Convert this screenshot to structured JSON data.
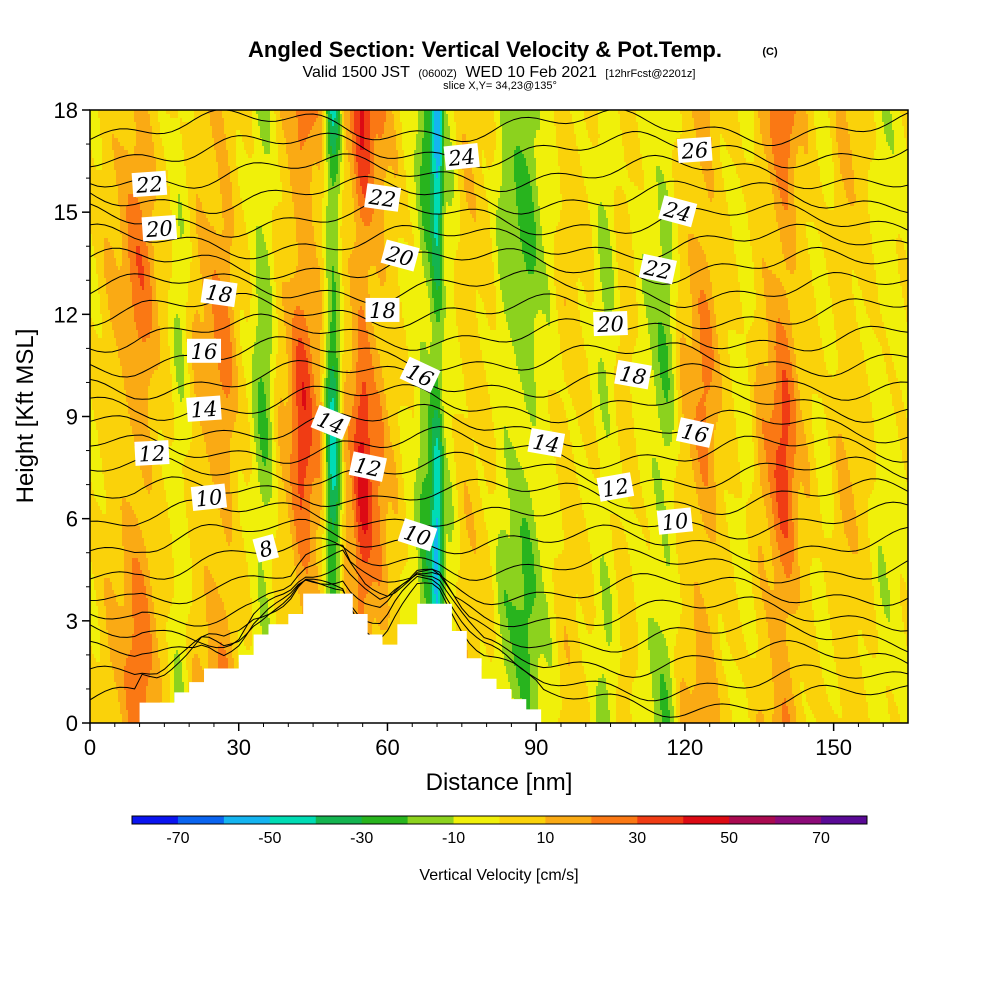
{
  "header": {
    "title": "Angled Section: Vertical Velocity & Pot.Temp.",
    "copyright": "(C)",
    "valid_prefix": "Valid 1500 JST",
    "valid_utc": "(0600Z)",
    "valid_date": "WED 10 Feb 2021",
    "forecast": "[12hrFcst@2201z]",
    "slice": "slice X,Y= 34,23@135°"
  },
  "chart_data": {
    "type": "heatmap",
    "xlabel": "Distance [nm]",
    "ylabel": "Height [Kft MSL]",
    "xlim": [
      0,
      165
    ],
    "ylim": [
      0,
      18
    ],
    "x_ticks": [
      0,
      30,
      60,
      90,
      120,
      150
    ],
    "y_ticks": [
      0,
      3,
      6,
      9,
      12,
      15,
      18
    ],
    "shading_field": "Vertical Velocity [cm/s]",
    "contour_field": "Potential Temperature [C]",
    "colorbar": {
      "label": "Vertical Velocity [cm/s]",
      "tick_labels": [
        "-70",
        "-50",
        "-30",
        "-10",
        "10",
        "30",
        "50",
        "70"
      ],
      "tick_values": [
        -70,
        -50,
        -30,
        -10,
        10,
        30,
        50,
        70
      ],
      "bounds": [
        -80,
        80
      ],
      "colors": [
        "#0a14f0",
        "#0a64f0",
        "#14b4f0",
        "#00dcb4",
        "#14b450",
        "#28b41e",
        "#8cd21e",
        "#f0f00a",
        "#fad20a",
        "#faaa14",
        "#fa7814",
        "#f03c14",
        "#dc0a14",
        "#aa0a50",
        "#8c0a78",
        "#5a0a96"
      ]
    },
    "columns": [
      {
        "x": 0,
        "w": 0
      },
      {
        "x": 5,
        "w": 10
      },
      {
        "x": 10,
        "w": 25
      },
      {
        "x": 15,
        "w": 5
      },
      {
        "x": 18,
        "w": -10
      },
      {
        "x": 22,
        "w": 12
      },
      {
        "x": 27,
        "w": 22
      },
      {
        "x": 31,
        "w": 2
      },
      {
        "x": 35,
        "w": -20
      },
      {
        "x": 39,
        "w": 10
      },
      {
        "x": 43,
        "w": 35
      },
      {
        "x": 46,
        "w": 18
      },
      {
        "x": 49,
        "w": -40
      },
      {
        "x": 52,
        "w": 15
      },
      {
        "x": 55,
        "w": 40
      },
      {
        "x": 58,
        "w": 22
      },
      {
        "x": 61,
        "w": 8
      },
      {
        "x": 65,
        "w": -5
      },
      {
        "x": 68,
        "w": -25
      },
      {
        "x": 70,
        "w": -50
      },
      {
        "x": 72,
        "w": -10
      },
      {
        "x": 76,
        "w": 8
      },
      {
        "x": 80,
        "w": 3
      },
      {
        "x": 84,
        "w": -15
      },
      {
        "x": 88,
        "w": -22
      },
      {
        "x": 92,
        "w": -8
      },
      {
        "x": 96,
        "w": 6
      },
      {
        "x": 100,
        "w": 2
      },
      {
        "x": 104,
        "w": -12
      },
      {
        "x": 108,
        "w": 6
      },
      {
        "x": 112,
        "w": -8
      },
      {
        "x": 116,
        "w": -18
      },
      {
        "x": 120,
        "w": 10
      },
      {
        "x": 124,
        "w": 22
      },
      {
        "x": 128,
        "w": 5
      },
      {
        "x": 132,
        "w": -5
      },
      {
        "x": 136,
        "w": 15
      },
      {
        "x": 140,
        "w": 32
      },
      {
        "x": 144,
        "w": 8
      },
      {
        "x": 148,
        "w": -3
      },
      {
        "x": 152,
        "w": 10
      },
      {
        "x": 156,
        "w": 5
      },
      {
        "x": 160,
        "w": -8
      },
      {
        "x": 165,
        "w": -2
      }
    ],
    "contour_labels": [
      {
        "text": "22",
        "x": 12,
        "y": 15.8,
        "angle": -4
      },
      {
        "text": "20",
        "x": 14,
        "y": 14.5,
        "angle": -4
      },
      {
        "text": "18",
        "x": 26,
        "y": 12.6,
        "angle": 8
      },
      {
        "text": "16",
        "x": 23,
        "y": 10.9,
        "angle": 0
      },
      {
        "text": "14",
        "x": 23,
        "y": 9.2,
        "angle": -4
      },
      {
        "text": "12",
        "x": 12.5,
        "y": 7.9,
        "angle": -3
      },
      {
        "text": "10",
        "x": 24,
        "y": 6.6,
        "angle": -6
      },
      {
        "text": "8",
        "x": 35.5,
        "y": 5.1,
        "angle": -15
      },
      {
        "text": "14",
        "x": 48.5,
        "y": 8.8,
        "angle": 22
      },
      {
        "text": "12",
        "x": 56,
        "y": 7.5,
        "angle": 12
      },
      {
        "text": "10",
        "x": 66,
        "y": 5.5,
        "angle": 18
      },
      {
        "text": "16",
        "x": 66.5,
        "y": 10.2,
        "angle": 25
      },
      {
        "text": "18",
        "x": 59,
        "y": 12.1,
        "angle": 0
      },
      {
        "text": "20",
        "x": 62.5,
        "y": 13.7,
        "angle": 15
      },
      {
        "text": "22",
        "x": 59,
        "y": 15.4,
        "angle": 8
      },
      {
        "text": "24",
        "x": 75,
        "y": 16.6,
        "angle": -6
      },
      {
        "text": "26",
        "x": 122,
        "y": 16.8,
        "angle": -4
      },
      {
        "text": "24",
        "x": 118.5,
        "y": 15.0,
        "angle": 15
      },
      {
        "text": "22",
        "x": 114.5,
        "y": 13.3,
        "angle": 12
      },
      {
        "text": "20",
        "x": 105,
        "y": 11.7,
        "angle": -2
      },
      {
        "text": "18",
        "x": 109.5,
        "y": 10.2,
        "angle": 10
      },
      {
        "text": "16",
        "x": 122,
        "y": 8.5,
        "angle": 12
      },
      {
        "text": "14",
        "x": 92,
        "y": 8.2,
        "angle": 10
      },
      {
        "text": "12",
        "x": 106,
        "y": 6.9,
        "angle": -10
      },
      {
        "text": "10",
        "x": 118,
        "y": 5.9,
        "angle": -6
      }
    ],
    "terrain": [
      [
        10,
        0.6
      ],
      [
        14,
        0.6
      ],
      [
        17,
        0.9
      ],
      [
        20,
        1.2
      ],
      [
        23,
        1.6
      ],
      [
        27,
        1.6
      ],
      [
        30,
        2.0
      ],
      [
        33,
        2.6
      ],
      [
        36,
        2.9
      ],
      [
        40,
        3.2
      ],
      [
        43,
        3.8
      ],
      [
        47,
        3.8
      ],
      [
        51,
        3.8
      ],
      [
        53,
        3.2
      ],
      [
        56,
        2.6
      ],
      [
        59,
        2.3
      ],
      [
        62,
        2.9
      ],
      [
        66,
        3.5
      ],
      [
        70,
        3.5
      ],
      [
        73,
        2.7
      ],
      [
        76,
        1.9
      ],
      [
        79,
        1.3
      ],
      [
        82,
        1.0
      ],
      [
        85,
        0.7
      ],
      [
        88,
        0.4
      ],
      [
        91,
        0.2
      ]
    ]
  }
}
